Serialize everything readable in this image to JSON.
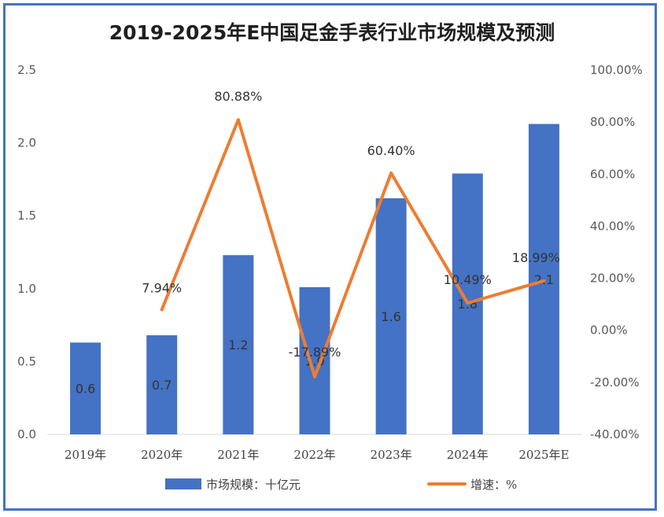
{
  "chart_data": {
    "type": "bar",
    "title": "2019-2025年E中国足金手表行业市场规模及预测",
    "categories": [
      "2019年",
      "2020年",
      "2021年",
      "2022年",
      "2023年",
      "2024年",
      "2025年E"
    ],
    "series": [
      {
        "name": "市场规模：十亿元",
        "type": "bar",
        "axis": "left",
        "values": [
          0.63,
          0.68,
          1.23,
          1.01,
          1.62,
          1.79,
          2.13
        ],
        "labels": [
          "0.6",
          "0.7",
          "1.2",
          "1.0",
          "1.6",
          "1.8",
          "2.1"
        ],
        "color": "#4472C4"
      },
      {
        "name": "增速：%",
        "type": "line",
        "axis": "right",
        "values": [
          null,
          7.94,
          80.88,
          -17.89,
          60.4,
          10.49,
          18.99
        ],
        "labels": [
          "",
          "7.94%",
          "80.88%",
          "-17.89%",
          "60.40%",
          "10.49%",
          "18.99%"
        ],
        "color": "#ED7D31"
      }
    ],
    "y_left": {
      "min": 0,
      "max": 2.5,
      "ticks": [
        "0.0",
        "0.5",
        "1.0",
        "1.5",
        "2.0",
        "2.5"
      ]
    },
    "y_right": {
      "min": -40,
      "max": 100,
      "ticks": [
        "-40.00%",
        "-20.00%",
        "0.00%",
        "20.00%",
        "40.00%",
        "60.00%",
        "80.00%",
        "100.00%"
      ]
    },
    "grid": false,
    "legend": "bottom"
  }
}
